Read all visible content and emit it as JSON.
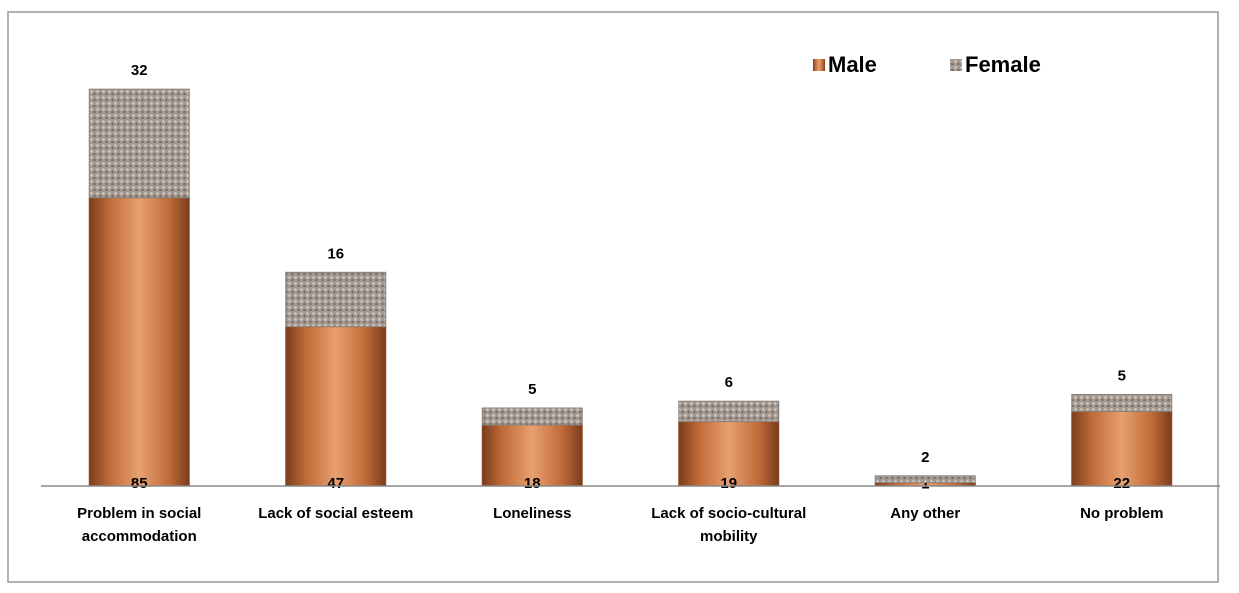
{
  "chart_data": {
    "type": "stacked-bar",
    "categories": [
      "Problem in social accommodation",
      "Lack of social esteem",
      "Loneliness",
      "Lack of socio-cultural mobility",
      "Any other",
      "No problem"
    ],
    "series": [
      {
        "name": "Male",
        "color": "#c8753f",
        "values": [
          85,
          47,
          18,
          19,
          1,
          22
        ]
      },
      {
        "name": "Female",
        "color": "#a39990",
        "values": [
          32,
          16,
          5,
          6,
          2,
          5
        ]
      }
    ],
    "ylim": [
      0,
      120
    ],
    "legend": "top-right"
  }
}
